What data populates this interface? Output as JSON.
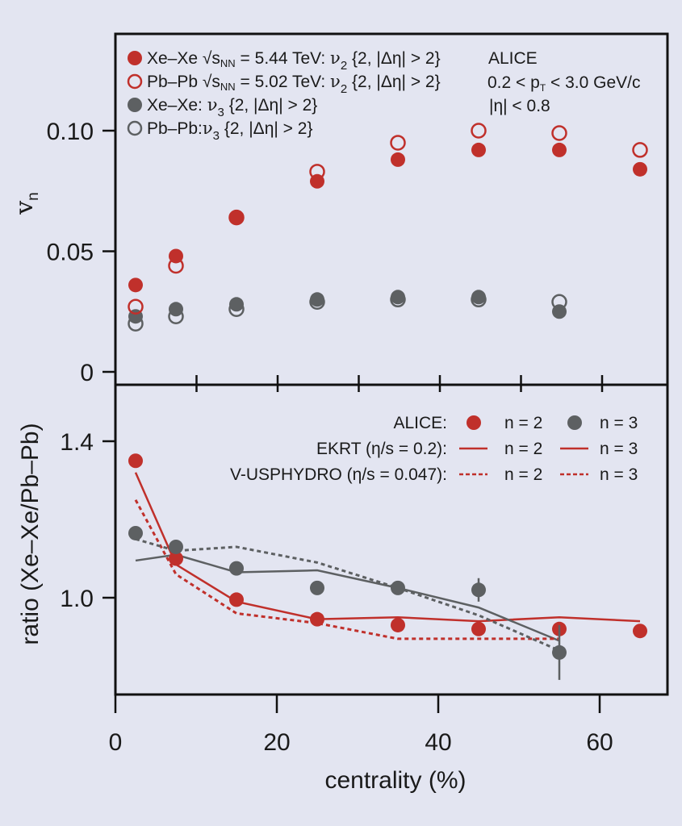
{
  "chart_data": [
    {
      "panel": "top",
      "type": "scatter",
      "ylabel": "v_n",
      "ylabel_main": "v",
      "ylabel_sub": "n",
      "xlabel": "centrality (%)",
      "xlim": [
        0,
        68
      ],
      "ylim": [
        -0.001,
        0.11
      ],
      "yticks": [
        0,
        0.05,
        0.1
      ],
      "ytick_labels": [
        "0",
        "0.05",
        "0.10"
      ],
      "xticks": [
        10,
        20,
        30,
        40,
        50,
        60
      ],
      "legend_placement": "top-left",
      "legend": [
        {
          "series": "xexe_v2",
          "parts": [
            "Xe–Xe ",
            "√s",
            "NN",
            " = 5.44 TeV: ",
            "ν",
            "2",
            " {2, |Δη| > 2}"
          ]
        },
        {
          "series": "pbpb_v2",
          "parts": [
            "Pb–Pb ",
            "√s",
            "NN",
            " = 5.02 TeV: ",
            "ν",
            "2",
            " {2, |Δη| > 2}"
          ]
        },
        {
          "series": "xexe_v3",
          "parts": [
            "Xe–Xe: ",
            "",
            "",
            "",
            "ν",
            "3",
            " {2, |Δη| > 2}"
          ]
        },
        {
          "series": "pbpb_v3",
          "parts": [
            "Pb–Pb:",
            "",
            "",
            "",
            "ν",
            "3",
            " {2, |Δη| > 2}"
          ]
        }
      ],
      "annotations": {
        "experiment": "ALICE",
        "pt_range_pre": "0.2 < p",
        "pt_sub": "T",
        "pt_range_post": " < 3.0 GeV/c",
        "eta_cut": "|η|  < 0.8"
      },
      "series": [
        {
          "name": "xexe_v2",
          "label": "Xe-Xe v2",
          "color": "#c0302b",
          "filled": true,
          "x": [
            2.5,
            7.5,
            15,
            25,
            35,
            45,
            55,
            65
          ],
          "y": [
            0.036,
            0.048,
            0.064,
            0.079,
            0.088,
            0.092,
            0.092,
            0.084
          ]
        },
        {
          "name": "pbpb_v2",
          "label": "Pb-Pb v2",
          "color": "#c0302b",
          "filled": false,
          "x": [
            2.5,
            7.5,
            15,
            25,
            35,
            45,
            55,
            65
          ],
          "y": [
            0.027,
            0.044,
            0.064,
            0.083,
            0.095,
            0.1,
            0.099,
            0.092
          ]
        },
        {
          "name": "xexe_v3",
          "label": "Xe-Xe v3",
          "color": "#5d6062",
          "filled": true,
          "x": [
            2.5,
            7.5,
            15,
            25,
            35,
            45,
            55
          ],
          "y": [
            0.023,
            0.026,
            0.028,
            0.03,
            0.031,
            0.031,
            0.025
          ]
        },
        {
          "name": "pbpb_v3",
          "label": "Pb-Pb v3",
          "color": "#5d6062",
          "filled": false,
          "x": [
            2.5,
            7.5,
            15,
            25,
            35,
            45,
            55
          ],
          "y": [
            0.02,
            0.023,
            0.026,
            0.029,
            0.03,
            0.03,
            0.029
          ]
        }
      ]
    },
    {
      "panel": "bottom",
      "type": "line",
      "ylabel": "ratio (Xe–Xe/Pb–Pb)",
      "xlabel": "centrality (%)",
      "xlim": [
        0,
        68
      ],
      "ylim": [
        0.87,
        1.53
      ],
      "yticks": [
        1.0,
        1.4
      ],
      "ytick_labels": [
        "1.0",
        "1.4"
      ],
      "xticks": [
        0,
        20,
        40,
        60
      ],
      "xtick_labels": [
        "0",
        "20",
        "40",
        "60"
      ],
      "legend_placement": "top-right",
      "legend": {
        "rows": [
          {
            "label": "ALICE:",
            "n2": "n = 2",
            "n3": "n = 3",
            "style": "marker"
          },
          {
            "label": "EKRT (η/s = 0.2):",
            "n2": "n = 2",
            "n3": "n = 3",
            "style": "solid"
          },
          {
            "label": "V-USPHYDRO (η/s = 0.047):",
            "n2": "n = 2",
            "n3": "n = 3",
            "style": "dashed"
          }
        ]
      },
      "points": [
        {
          "name": "alice_n2",
          "color": "#c0302b",
          "x": [
            2.5,
            7.5,
            15,
            25,
            35,
            45,
            55,
            65
          ],
          "y": [
            1.35,
            1.1,
            0.995,
            0.945,
            0.93,
            0.92,
            0.92,
            0.915
          ],
          "yerr": [
            0,
            0,
            0,
            0,
            0,
            0,
            0,
            0
          ]
        },
        {
          "name": "alice_n3",
          "color": "#5d6062",
          "x": [
            2.5,
            7.5,
            15,
            25,
            35,
            45,
            55
          ],
          "y": [
            1.165,
            1.13,
            1.075,
            1.025,
            1.025,
            1.02,
            0.86
          ],
          "yerr": [
            0,
            0,
            0,
            0,
            0,
            0.03,
            0.07
          ]
        }
      ],
      "lines": [
        {
          "name": "ekrt_n2",
          "model": "EKRT",
          "color": "#c0302b",
          "dashed": false,
          "x": [
            2.5,
            7.5,
            15,
            25,
            35,
            45,
            55,
            65
          ],
          "y": [
            1.32,
            1.085,
            0.99,
            0.945,
            0.95,
            0.94,
            0.95,
            0.94
          ]
        },
        {
          "name": "ekrt_n3",
          "model": "EKRT",
          "color": "#5d6062",
          "dashed": false,
          "x": [
            2.5,
            7.5,
            15,
            25,
            35,
            45,
            55
          ],
          "y": [
            1.095,
            1.11,
            1.065,
            1.07,
            1.025,
            0.975,
            0.89
          ]
        },
        {
          "name": "vusp_n2",
          "model": "V-USPHYDRO",
          "color": "#c0302b",
          "dashed": true,
          "x": [
            2.5,
            7.5,
            15,
            25,
            35,
            45,
            55
          ],
          "y": [
            1.25,
            1.06,
            0.96,
            0.935,
            0.895,
            0.895,
            0.895
          ]
        },
        {
          "name": "vusp_n3",
          "model": "V-USPHYDRO",
          "color": "#5d6062",
          "dashed": true,
          "x": [
            2.5,
            7.5,
            15,
            25,
            35,
            45,
            55
          ],
          "y": [
            1.15,
            1.12,
            1.13,
            1.09,
            1.025,
            0.955,
            0.865
          ]
        }
      ]
    }
  ]
}
